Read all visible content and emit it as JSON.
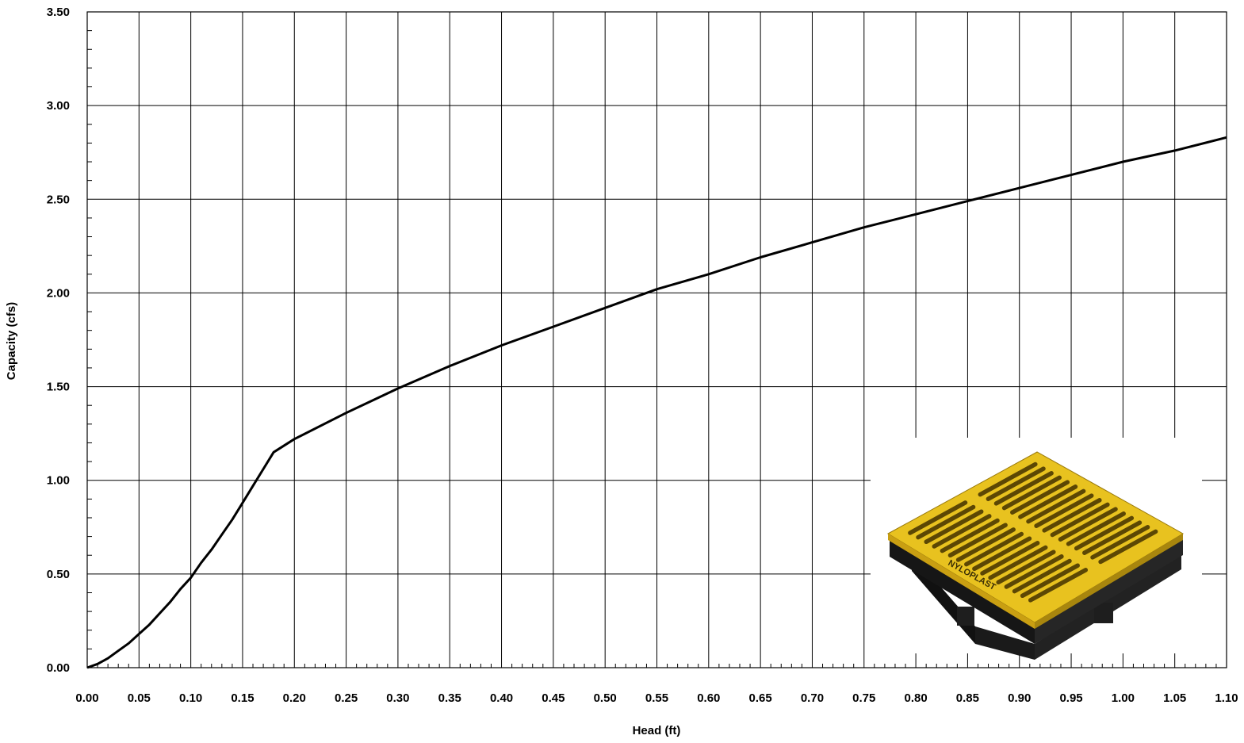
{
  "chart_data": {
    "type": "line",
    "title": "",
    "xlabel": "Head (ft)",
    "ylabel": "Capacity (cfs)",
    "xlim": [
      0,
      1.1
    ],
    "ylim": [
      0,
      3.5
    ],
    "x_ticks": [
      "0.00",
      "0.05",
      "0.10",
      "0.15",
      "0.20",
      "0.25",
      "0.30",
      "0.35",
      "0.40",
      "0.45",
      "0.50",
      "0.55",
      "0.60",
      "0.65",
      "0.70",
      "0.75",
      "0.80",
      "0.85",
      "0.90",
      "0.95",
      "1.00",
      "1.05",
      "1.10"
    ],
    "y_ticks": [
      "0.00",
      "0.50",
      "1.00",
      "1.50",
      "2.00",
      "2.50",
      "3.00",
      "3.50"
    ],
    "grid": true,
    "legend": "none",
    "series": [
      {
        "color": "#000000",
        "x": [
          0,
          0.01,
          0.02,
          0.03,
          0.04,
          0.05,
          0.06,
          0.07,
          0.08,
          0.09,
          0.1,
          0.11,
          0.12,
          0.13,
          0.14,
          0.15,
          0.16,
          0.17,
          0.18,
          0.2,
          0.25,
          0.3,
          0.35,
          0.4,
          0.45,
          0.5,
          0.55,
          0.6,
          0.65,
          0.7,
          0.75,
          0.8,
          0.85,
          0.9,
          0.95,
          1.0,
          1.05,
          1.1
        ],
        "y": [
          0,
          0.02,
          0.05,
          0.09,
          0.13,
          0.18,
          0.23,
          0.29,
          0.35,
          0.42,
          0.48,
          0.56,
          0.63,
          0.71,
          0.79,
          0.88,
          0.97,
          1.06,
          1.15,
          1.22,
          1.36,
          1.49,
          1.61,
          1.72,
          1.82,
          1.92,
          2.02,
          2.1,
          2.19,
          2.27,
          2.35,
          2.42,
          2.49,
          2.56,
          2.63,
          2.7,
          2.76,
          2.83
        ]
      }
    ]
  },
  "inset": {
    "product_logo": "NYLOPLAST",
    "colors": {
      "grate_top": "#e8c21f",
      "grate_side": "#b88f10",
      "body": "#1c1c1c"
    }
  }
}
